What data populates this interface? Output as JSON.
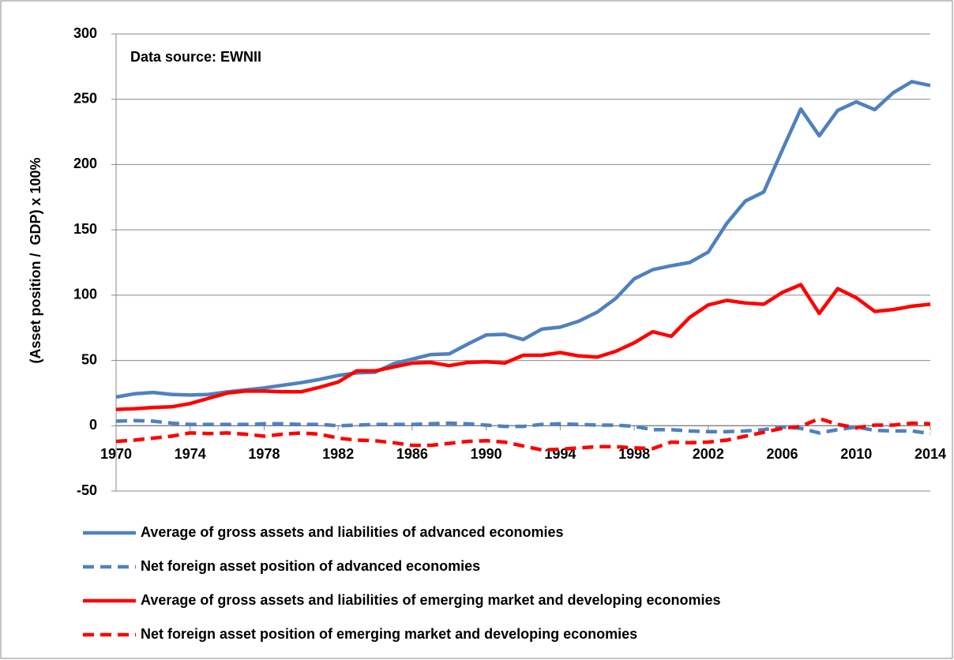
{
  "chart_data": {
    "type": "line",
    "annotation": "Data source: EWNII",
    "y_label": "(Asset position /  GDP) x 100%",
    "x": [
      1970,
      1971,
      1972,
      1973,
      1974,
      1975,
      1976,
      1977,
      1978,
      1979,
      1980,
      1981,
      1982,
      1983,
      1984,
      1985,
      1986,
      1987,
      1988,
      1989,
      1990,
      1991,
      1992,
      1993,
      1994,
      1995,
      1996,
      1997,
      1998,
      1999,
      2000,
      2001,
      2002,
      2003,
      2004,
      2005,
      2006,
      2007,
      2008,
      2009,
      2010,
      2011,
      2012,
      2013,
      2014
    ],
    "xlim": [
      1970,
      2014
    ],
    "xticks": [
      1970,
      1974,
      1978,
      1982,
      1986,
      1990,
      1994,
      1998,
      2002,
      2006,
      2010,
      2014
    ],
    "ylim": [
      -50,
      300
    ],
    "yticks": [
      -50,
      0,
      50,
      100,
      150,
      200,
      250,
      300
    ],
    "grid": true,
    "series": [
      {
        "name": "Average of gross assets and liabilities of advanced economies",
        "color": "#4f81bd",
        "line_style": "solid",
        "values": [
          22,
          24.5,
          25.5,
          24,
          23.5,
          24,
          26,
          27.5,
          29,
          31,
          33,
          35.5,
          38.5,
          40.5,
          41,
          47.5,
          51,
          54.5,
          55,
          62.5,
          69.5,
          70,
          66,
          74,
          75.5,
          80,
          87,
          97.5,
          112.5,
          119.5,
          122.5,
          125,
          133,
          155,
          172,
          179,
          211,
          242.5,
          222,
          241.5,
          248,
          242,
          255,
          263.5,
          260.5
        ]
      },
      {
        "name": "Net foreign asset position of advanced economies",
        "color": "#4f81bd",
        "line_style": "dashed",
        "values": [
          3.5,
          4,
          3.5,
          2,
          1,
          1,
          1,
          1,
          1.5,
          1.5,
          1,
          1,
          0,
          0.5,
          1,
          1,
          1,
          1.5,
          2,
          1.5,
          0.5,
          -0.5,
          -0.5,
          1,
          1.5,
          1,
          0.5,
          0.5,
          -0.5,
          -3,
          -3,
          -4,
          -4.5,
          -4.5,
          -4,
          -3,
          -1,
          -2,
          -5.5,
          -3,
          -1,
          -3.5,
          -4,
          -4,
          -6
        ]
      },
      {
        "name": "Average of gross assets and liabilities of emerging market and developing economies",
        "color": "#ff0000",
        "line_style": "solid",
        "values": [
          12.5,
          13,
          14,
          14.5,
          17,
          21,
          25,
          26.5,
          26.5,
          26,
          26,
          29.5,
          33.5,
          42,
          42,
          45,
          48,
          48.5,
          46,
          48.5,
          49,
          48,
          54,
          54,
          56,
          53.5,
          52.5,
          57,
          63.5,
          72,
          68.5,
          83,
          92.5,
          96,
          94,
          93,
          102,
          108,
          86,
          105,
          98,
          87.5,
          89,
          91.5,
          93
        ]
      },
      {
        "name": "Net foreign asset position of emerging market and developing economies",
        "color": "#ff0000",
        "line_style": "dashed",
        "values": [
          -12,
          -11,
          -9.5,
          -8,
          -5.5,
          -6,
          -5.5,
          -6.5,
          -8,
          -6.5,
          -5.5,
          -6.5,
          -9.5,
          -11,
          -11.5,
          -13,
          -15,
          -15,
          -13.5,
          -12,
          -11.5,
          -12.5,
          -15.5,
          -18.5,
          -18,
          -17,
          -16,
          -16,
          -17,
          -17.5,
          -12.5,
          -13,
          -12.5,
          -11,
          -8,
          -5,
          -2,
          -0.5,
          5.5,
          1,
          -1.5,
          0.5,
          0.5,
          2,
          1.5
        ]
      }
    ]
  }
}
